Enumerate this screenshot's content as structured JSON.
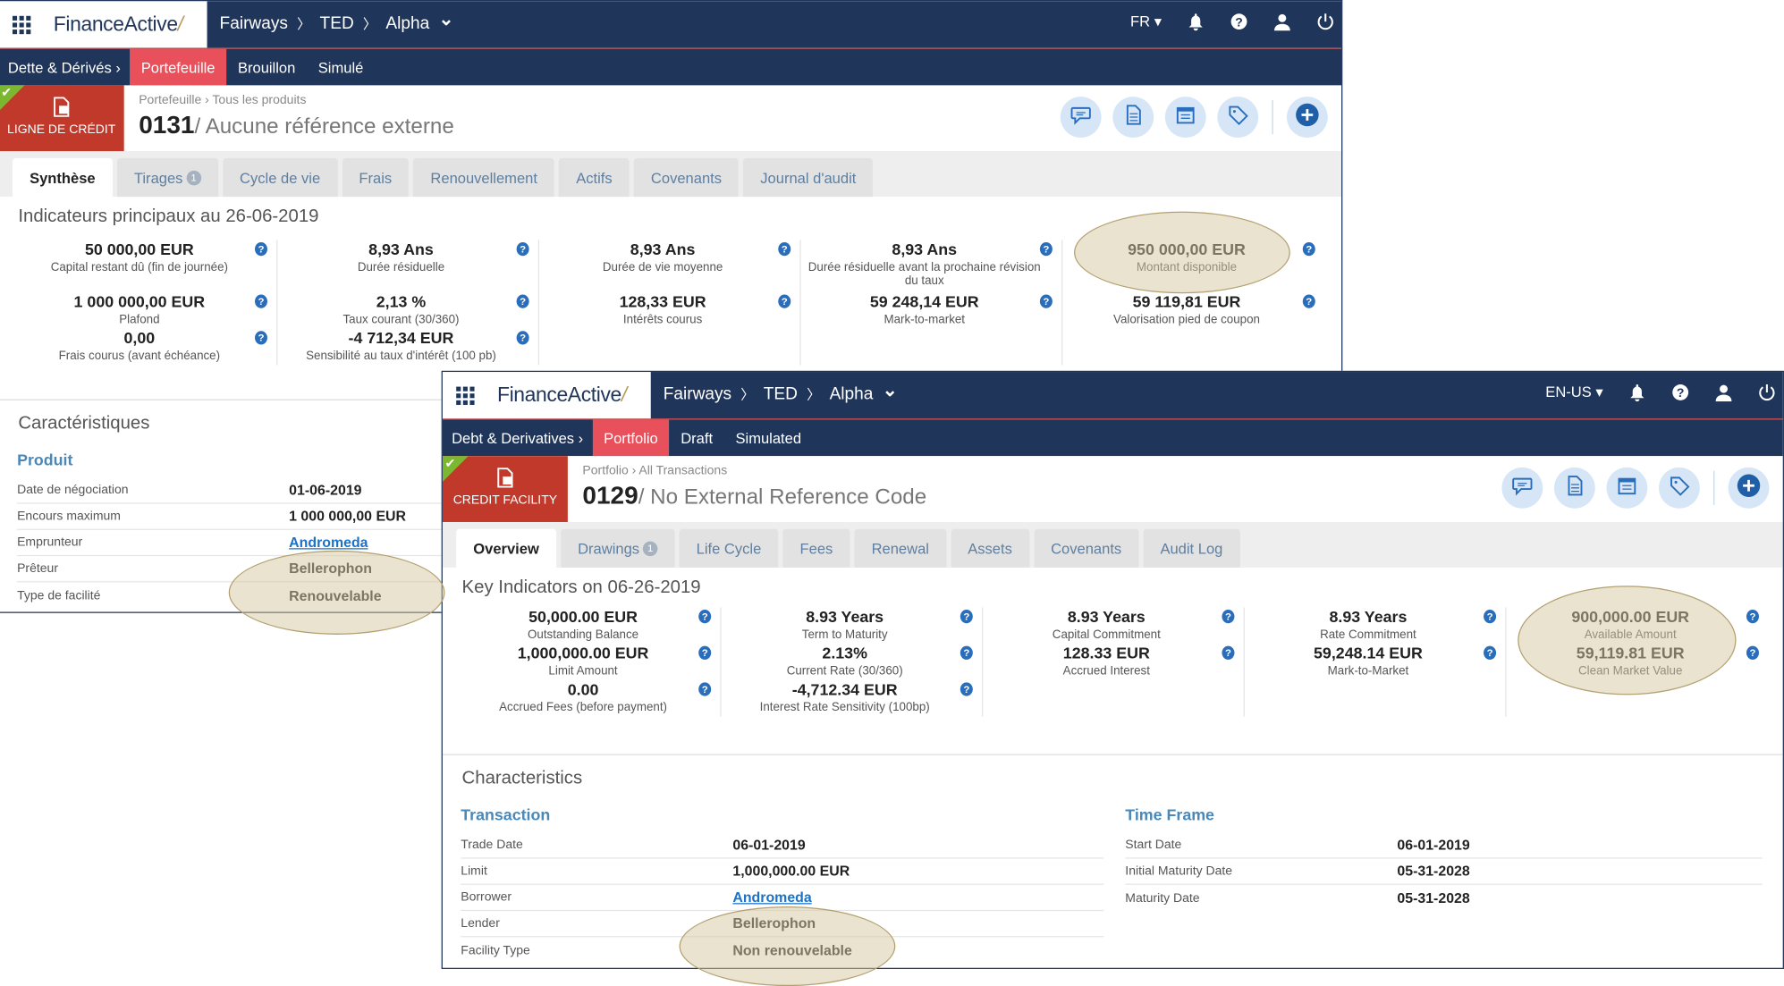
{
  "windows": [
    {
      "lang": "FR",
      "breadcrumb": [
        "Fairways",
        "TED",
        "Alpha"
      ],
      "brand": {
        "a": "Finance",
        "b": "Active"
      },
      "subnav": {
        "section": "Dette & Dérivés ›",
        "items": [
          "Portefeuille",
          "Brouillon",
          "Simulé"
        ],
        "active": 0
      },
      "badge": "LIGNE DE CRÉDIT",
      "page_breadcrumb": "Portefeuille › Tous les produits",
      "id": "0131",
      "reference": "/ Aucune référence externe",
      "tabs": [
        {
          "label": "Synthèse",
          "active": true
        },
        {
          "label": "Tirages",
          "count": "1"
        },
        {
          "label": "Cycle de vie"
        },
        {
          "label": "Frais"
        },
        {
          "label": "Renouvellement"
        },
        {
          "label": "Actifs"
        },
        {
          "label": "Covenants"
        },
        {
          "label": "Journal d'audit"
        }
      ],
      "indicators_title": "Indicateurs principaux au 26-06-2019",
      "indicators": [
        [
          {
            "value": "50 000,00 EUR",
            "label": "Capital restant dû (fin de journée)"
          },
          {
            "value": "1 000 000,00 EUR",
            "label": "Plafond"
          },
          {
            "value": "0,00",
            "label": "Frais courus (avant échéance)"
          }
        ],
        [
          {
            "value": "8,93 Ans",
            "label": "Durée résiduelle"
          },
          {
            "value": "2,13 %",
            "label": "Taux courant (30/360)"
          },
          {
            "value": "-4 712,34 EUR",
            "label": "Sensibilité au taux d'intérêt (100 pb)"
          }
        ],
        [
          {
            "value": "8,93 Ans",
            "label": "Durée de vie moyenne"
          },
          {
            "value": "128,33 EUR",
            "label": "Intérêts courus"
          }
        ],
        [
          {
            "value": "8,93 Ans",
            "label": "Durée résiduelle avant la prochaine révision du taux"
          },
          {
            "value": "59 248,14 EUR",
            "label": "Mark-to-market"
          }
        ],
        [
          {
            "value": "950 000,00 EUR",
            "label": "Montant disponible"
          },
          {
            "value": "59 119,81 EUR",
            "label": "Valorisation pied de coupon"
          }
        ]
      ],
      "characteristics_title": "Caractéristiques",
      "groups": [
        {
          "name": "Produit",
          "rows": [
            {
              "label": "Date de négociation",
              "value": "01-06-2019"
            },
            {
              "label": "Encours maximum",
              "value": "1 000 000,00 EUR"
            },
            {
              "label": "Emprunteur",
              "value": "Andromeda",
              "link": true
            },
            {
              "label": "Prêteur",
              "value": "Bellerophon"
            },
            {
              "label": "Type de facilité",
              "value": "Renouvelable"
            }
          ]
        }
      ]
    },
    {
      "lang": "EN-US",
      "breadcrumb": [
        "Fairways",
        "TED",
        "Alpha"
      ],
      "brand": {
        "a": "Finance",
        "b": "Active"
      },
      "subnav": {
        "section": "Debt & Derivatives ›",
        "items": [
          "Portfolio",
          "Draft",
          "Simulated"
        ],
        "active": 0
      },
      "badge": "CREDIT FACILITY",
      "page_breadcrumb": "Portfolio › All Transactions",
      "id": "0129",
      "reference": "/ No External Reference Code",
      "tabs": [
        {
          "label": "Overview",
          "active": true
        },
        {
          "label": "Drawings",
          "count": "1"
        },
        {
          "label": "Life Cycle"
        },
        {
          "label": "Fees"
        },
        {
          "label": "Renewal"
        },
        {
          "label": "Assets"
        },
        {
          "label": "Covenants"
        },
        {
          "label": "Audit Log"
        }
      ],
      "indicators_title": "Key Indicators on 06-26-2019",
      "indicators": [
        [
          {
            "value": "50,000.00 EUR",
            "label": "Outstanding Balance"
          },
          {
            "value": "1,000,000.00 EUR",
            "label": "Limit Amount"
          },
          {
            "value": "0.00",
            "label": "Accrued Fees (before payment)"
          }
        ],
        [
          {
            "value": "8.93 Years",
            "label": "Term to Maturity"
          },
          {
            "value": "2.13%",
            "label": "Current Rate (30/360)"
          },
          {
            "value": "-4,712.34 EUR",
            "label": "Interest Rate Sensitivity (100bp)"
          }
        ],
        [
          {
            "value": "8.93 Years",
            "label": "Capital Commitment"
          },
          {
            "value": "128.33 EUR",
            "label": "Accrued Interest"
          }
        ],
        [
          {
            "value": "8.93 Years",
            "label": "Rate Commitment"
          },
          {
            "value": "59,248.14 EUR",
            "label": "Mark-to-Market"
          }
        ],
        [
          {
            "value": "900,000.00 EUR",
            "label": "Available Amount"
          },
          {
            "value": "59,119.81 EUR",
            "label": "Clean Market Value"
          }
        ]
      ],
      "characteristics_title": "Characteristics",
      "groups": [
        {
          "name": "Transaction",
          "rows": [
            {
              "label": "Trade Date",
              "value": "06-01-2019"
            },
            {
              "label": "Limit",
              "value": "1,000,000.00 EUR"
            },
            {
              "label": "Borrower",
              "value": "Andromeda",
              "link": true
            },
            {
              "label": "Lender",
              "value": "Bellerophon"
            },
            {
              "label": "Facility Type",
              "value": "Non renouvelable"
            }
          ]
        },
        {
          "name": "Time Frame",
          "rows": [
            {
              "label": "Start Date",
              "value": "06-01-2019"
            },
            {
              "label": "Initial Maturity Date",
              "value": "05-31-2028"
            },
            {
              "label": "Maturity Date",
              "value": "05-31-2028"
            }
          ]
        }
      ]
    }
  ],
  "colors": {
    "navy": "#1f3559",
    "accent_red": "#e8505b",
    "badge_red": "#c0392b",
    "check_green": "#7cb82f",
    "link_blue": "#1a73c8",
    "highlight": "#d6c8a0"
  },
  "icons": [
    "apps-grid-icon",
    "chevron-down-icon",
    "bell-icon",
    "help-icon",
    "user-icon",
    "power-icon",
    "comment-icon",
    "document-icon",
    "calendar-icon",
    "tag-icon",
    "plus-circle-icon",
    "info-icon",
    "check-icon"
  ]
}
